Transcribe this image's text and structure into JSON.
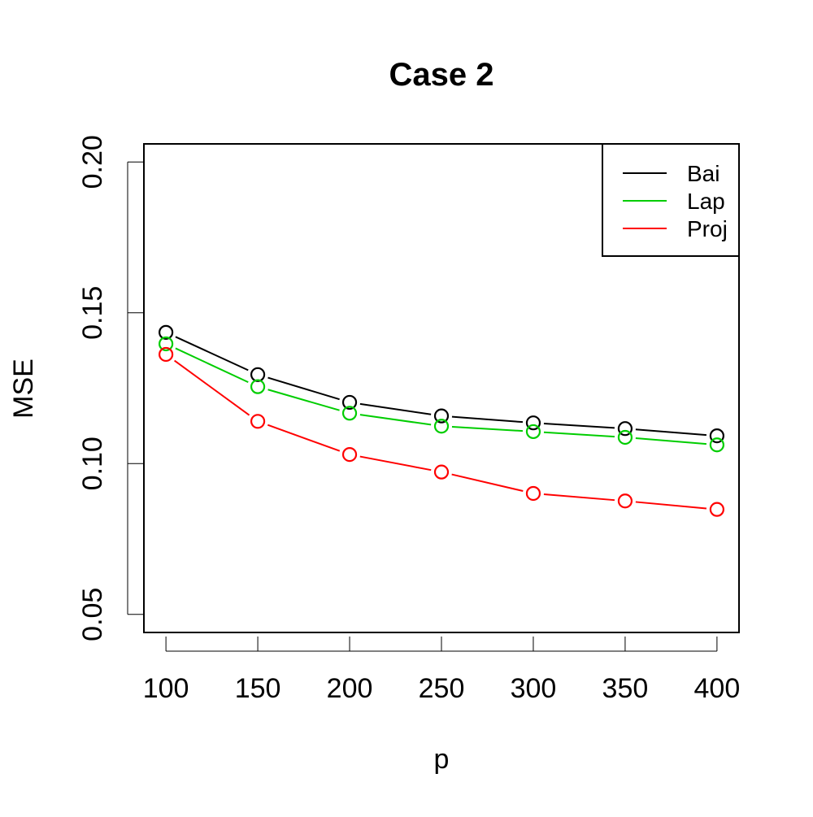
{
  "chart_data": {
    "type": "line",
    "title": "Case 2",
    "xlabel": "p",
    "ylabel": "MSE",
    "x": [
      100,
      150,
      200,
      250,
      300,
      350,
      400
    ],
    "x_ticks": [
      "100",
      "150",
      "200",
      "250",
      "300",
      "350",
      "400"
    ],
    "y_ticks": [
      "0.05",
      "0.10",
      "0.15",
      "0.20"
    ],
    "y_tick_values": [
      0.05,
      0.1,
      0.15,
      0.2
    ],
    "ylim": [
      0.044,
      0.206
    ],
    "xlim": [
      88,
      412
    ],
    "grid": false,
    "legend_position": "top-right",
    "markers": "open-circle",
    "series": [
      {
        "name": "Bai",
        "color": "#000000",
        "values": [
          0.1435,
          0.1295,
          0.1203,
          0.1158,
          0.1135,
          0.1116,
          0.1092
        ]
      },
      {
        "name": "Lap",
        "color": "#00cd00",
        "values": [
          0.1397,
          0.1255,
          0.1167,
          0.1124,
          0.1106,
          0.1087,
          0.1062
        ]
      },
      {
        "name": "Proj",
        "color": "#ff0000",
        "values": [
          0.1362,
          0.114,
          0.103,
          0.0972,
          0.0901,
          0.0876,
          0.0848
        ]
      }
    ]
  }
}
